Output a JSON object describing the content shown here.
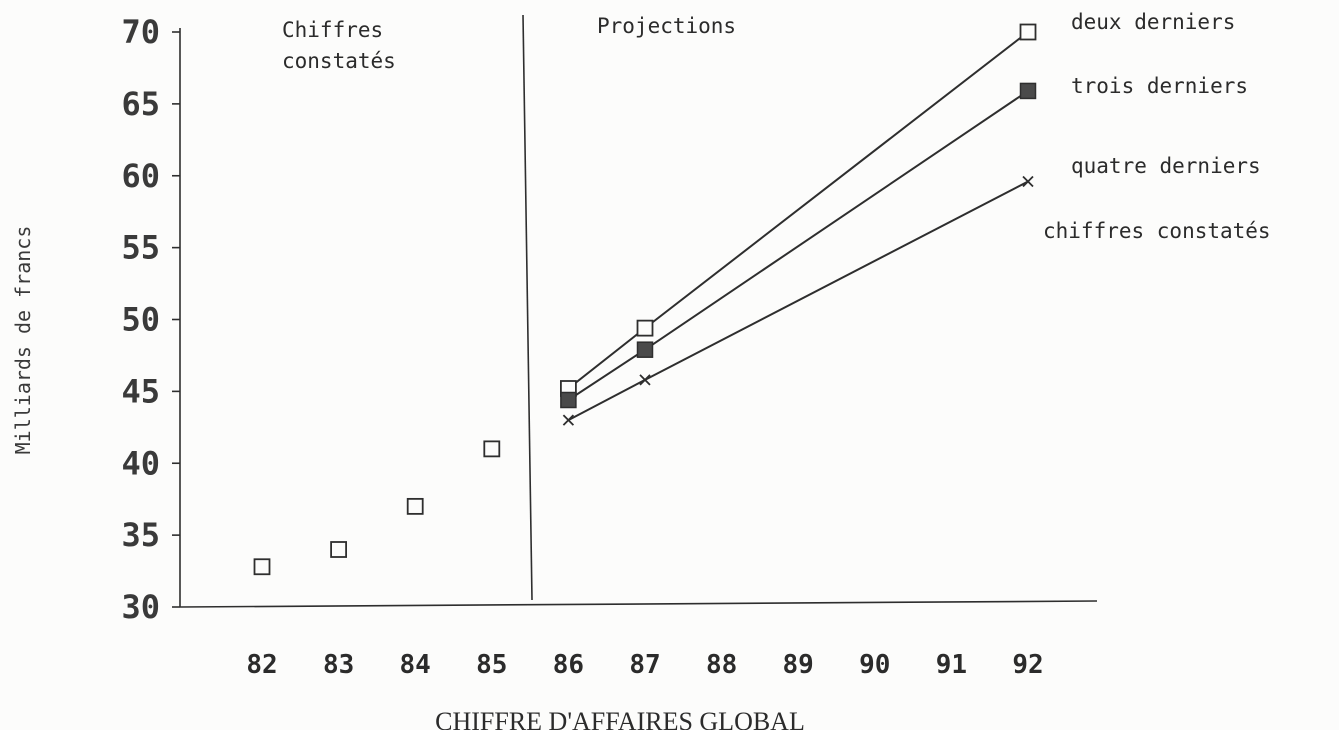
{
  "chart_data": {
    "type": "line",
    "title": "CHIFFRE D'AFFAIRES GLOBAL",
    "ylabel": "Milliards de francs",
    "xlabel": "",
    "x_ticks": [
      "82",
      "83",
      "84",
      "85",
      "86",
      "87",
      "88",
      "89",
      "90",
      "91",
      "92"
    ],
    "y_ticks": [
      "30",
      "35",
      "40",
      "45",
      "50",
      "55",
      "60",
      "65",
      "70"
    ],
    "ylim": [
      30,
      70
    ],
    "grid": false,
    "sections": {
      "observed": [
        "Chiffres",
        "constatés"
      ],
      "projected": "Projections"
    },
    "observed_series": {
      "name": "chiffres constatés",
      "marker": "open-square",
      "x": [
        82,
        83,
        84,
        85
      ],
      "y": [
        32.8,
        34.0,
        37.0,
        41.0
      ]
    },
    "series": [
      {
        "name": "deux derniers",
        "marker": "open-square",
        "x": [
          86,
          87,
          92
        ],
        "y": [
          45.2,
          49.4,
          70.0
        ]
      },
      {
        "name": "trois derniers",
        "marker": "filled-square",
        "x": [
          86,
          87,
          92
        ],
        "y": [
          44.4,
          47.9,
          65.9
        ]
      },
      {
        "name": "quatre derniers",
        "marker": "cross",
        "x": [
          86,
          87,
          92
        ],
        "y": [
          43.0,
          45.8,
          59.6
        ]
      }
    ],
    "legend_extra": "chiffres constatés"
  }
}
